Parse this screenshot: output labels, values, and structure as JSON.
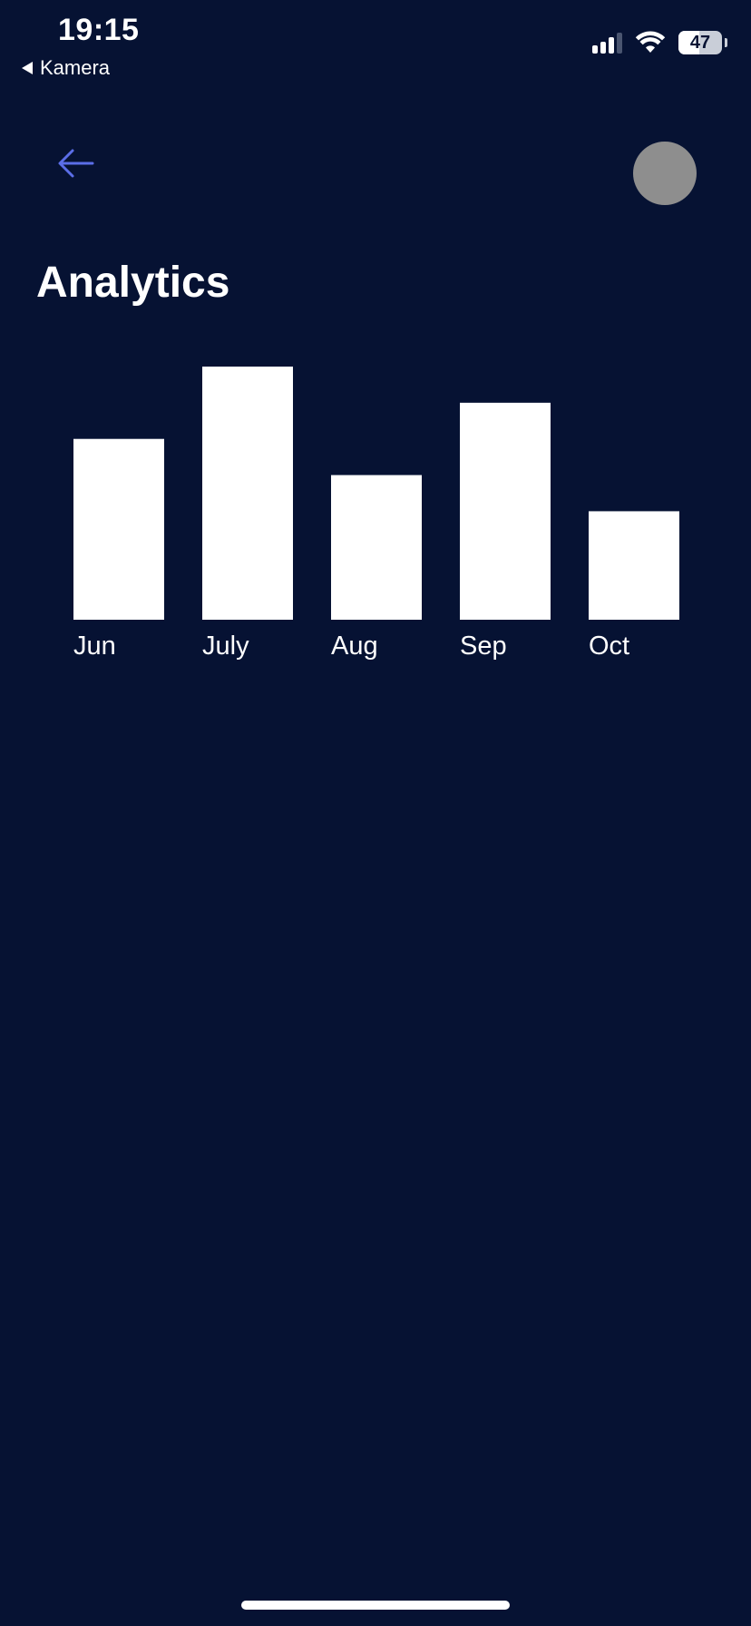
{
  "status_bar": {
    "time": "19:15",
    "back_app": "Kamera",
    "battery": "47",
    "battery_level": 0.47
  },
  "header": {
    "back_icon": "arrow-left-icon",
    "avatar_color": "#8e8e8e"
  },
  "page": {
    "title": "Analytics"
  },
  "colors": {
    "background": "#061233",
    "bar": "#ffffff",
    "accent": "#5b6ee8"
  },
  "chart_data": {
    "type": "bar",
    "categories": [
      "Jun",
      "July",
      "Aug",
      "Sep",
      "Oct"
    ],
    "values": [
      200,
      280,
      160,
      240,
      120
    ],
    "title": "",
    "xlabel": "",
    "ylabel": "",
    "ylim": [
      0,
      280
    ],
    "grid": false
  }
}
